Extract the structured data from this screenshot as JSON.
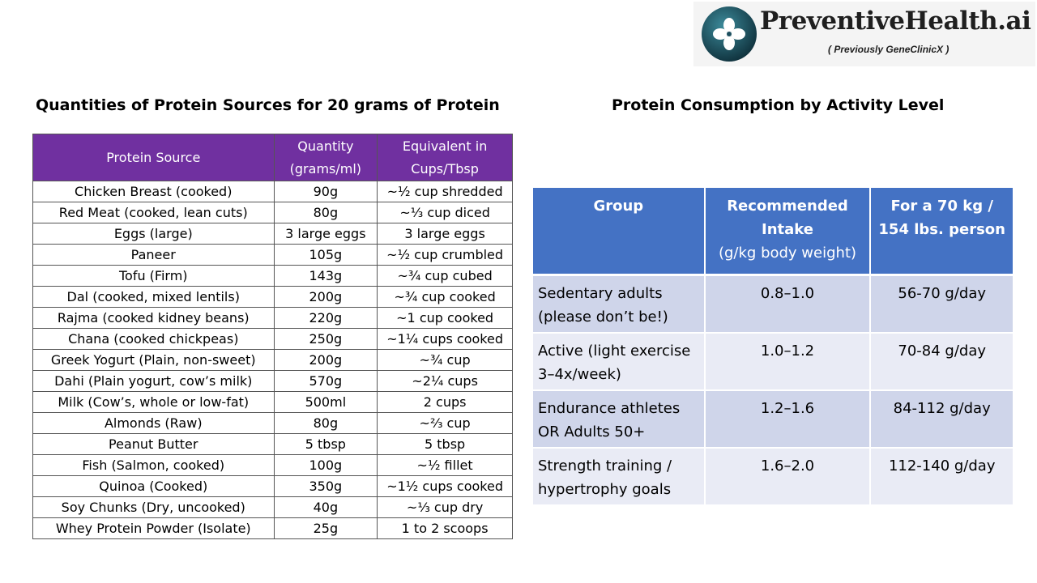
{
  "logo": {
    "name": "PreventiveHealth.ai",
    "subtitle": "( Previously  GeneClinicX )",
    "colors": {
      "ring": "#1d4f5f",
      "mark": "#ffffff"
    }
  },
  "left": {
    "title": "Quantities of Protein Sources for 20 grams of Protein",
    "headers": {
      "source": "Protein Source",
      "quantity_line1": "Quantity",
      "quantity_line2": "(grams/ml)",
      "equiv_line1": "Equivalent in",
      "equiv_line2": "Cups/Tbsp"
    },
    "rows": [
      {
        "source": "Chicken Breast (cooked)",
        "quantity": "90g",
        "equivalent": "~½ cup shredded"
      },
      {
        "source": "Red Meat (cooked, lean cuts)",
        "quantity": "80g",
        "equivalent": "~⅓ cup diced"
      },
      {
        "source": "Eggs (large)",
        "quantity": "3 large eggs",
        "equivalent": "3 large eggs"
      },
      {
        "source": "Paneer",
        "quantity": "105g",
        "equivalent": "~½ cup crumbled"
      },
      {
        "source": "Tofu (Firm)",
        "quantity": "143g",
        "equivalent": "~¾ cup cubed"
      },
      {
        "source": "Dal (cooked, mixed lentils)",
        "quantity": "200g",
        "equivalent": "~¾ cup cooked"
      },
      {
        "source": "Rajma (cooked kidney beans)",
        "quantity": "220g",
        "equivalent": "~1 cup cooked"
      },
      {
        "source": "Chana (cooked chickpeas)",
        "quantity": "250g",
        "equivalent": "~1¼ cups cooked"
      },
      {
        "source": "Greek Yogurt (Plain, non-sweet)",
        "quantity": "200g",
        "equivalent": "~¾ cup"
      },
      {
        "source": "Dahi (Plain yogurt, cow’s milk)",
        "quantity": "570g",
        "equivalent": "~2¼ cups"
      },
      {
        "source": "Milk (Cow’s, whole or low-fat)",
        "quantity": "500ml",
        "equivalent": "2 cups"
      },
      {
        "source": "Almonds (Raw)",
        "quantity": "80g",
        "equivalent": "~⅔ cup"
      },
      {
        "source": "Peanut Butter",
        "quantity": "5 tbsp",
        "equivalent": "5 tbsp"
      },
      {
        "source": "Fish (Salmon, cooked)",
        "quantity": "100g",
        "equivalent": "~½ fillet"
      },
      {
        "source": "Quinoa (Cooked)",
        "quantity": "350g",
        "equivalent": "~1½ cups cooked"
      },
      {
        "source": "Soy Chunks (Dry, uncooked)",
        "quantity": "40g",
        "equivalent": "~⅓ cup dry"
      },
      {
        "source": "Whey Protein Powder (Isolate)",
        "quantity": "25g",
        "equivalent": "1 to 2 scoops"
      }
    ],
    "colors": {
      "header_bg": "#7030a0"
    }
  },
  "right": {
    "title": "Protein Consumption by Activity Level",
    "headers": {
      "group": "Group",
      "intake_line1": "Recommended",
      "intake_line2": "Intake",
      "intake_line3": "(g/kg body weight)",
      "person_line1": "For a 70 kg /",
      "person_line2": "154 lbs. person"
    },
    "rows": [
      {
        "group_line1": "Sedentary adults",
        "group_line2": "(please don’t be!)",
        "intake": "0.8–1.0",
        "person": "56-70 g/day"
      },
      {
        "group_line1": "Active (light exercise",
        "group_line2": "3–4x/week)",
        "intake": "1.0–1.2",
        "person": "70-84 g/day"
      },
      {
        "group_line1": "Endurance athletes",
        "group_line2": "OR Adults 50+",
        "intake": "1.2–1.6",
        "person": "84-112 g/day"
      },
      {
        "group_line1": "Strength training /",
        "group_line2": "hypertrophy goals",
        "intake": "1.6–2.0",
        "person": "112-140 g/day"
      }
    ],
    "colors": {
      "header_bg": "#4472c4",
      "band_dark": "#cfd5ea",
      "band_light": "#e9ebf5"
    }
  }
}
